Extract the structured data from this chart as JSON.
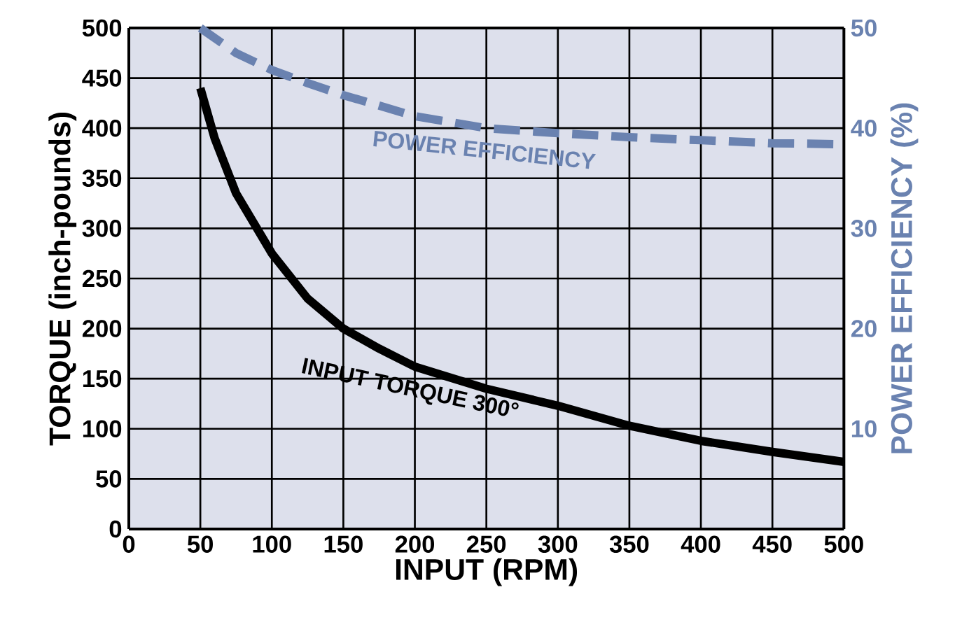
{
  "chart_data": {
    "type": "line",
    "xlabel": "INPUT (RPM)",
    "ylabel": "TORQUE (inch-pounds)",
    "y2label": "POWER EFFICIENCY (%)",
    "xlim": [
      0,
      500
    ],
    "xticks": [
      0,
      50,
      100,
      150,
      200,
      250,
      300,
      350,
      400,
      450,
      500
    ],
    "ylim": [
      0,
      500
    ],
    "yticks": [
      0,
      50,
      100,
      150,
      200,
      250,
      300,
      350,
      400,
      450,
      500
    ],
    "y2lim": [
      0,
      50
    ],
    "y2ticks": [
      {
        "value": 0,
        "label": null
      },
      10,
      20,
      30,
      40,
      50
    ],
    "grid": true,
    "series": [
      {
        "name": "INPUT TORQUE 300°",
        "color": "#000000",
        "line_style": "solid",
        "x": [
          50,
          60,
          75,
          100,
          125,
          150,
          175,
          200,
          250,
          300,
          350,
          400,
          450,
          500
        ],
        "values": [
          440,
          390,
          335,
          275,
          230,
          200,
          180,
          162,
          140,
          123,
          103,
          88,
          77,
          67
        ]
      },
      {
        "name": "POWER EFFICIENCY",
        "color": "#6a82b0",
        "line_style": "dashed",
        "axis": "y2",
        "x": [
          50,
          75,
          100,
          125,
          150,
          200,
          250,
          300,
          350,
          400,
          450,
          500
        ],
        "values": [
          50,
          47.5,
          45.8,
          44.5,
          43.3,
          41.2,
          40,
          39.5,
          39.1,
          38.8,
          38.5,
          38.4
        ]
      }
    ]
  }
}
